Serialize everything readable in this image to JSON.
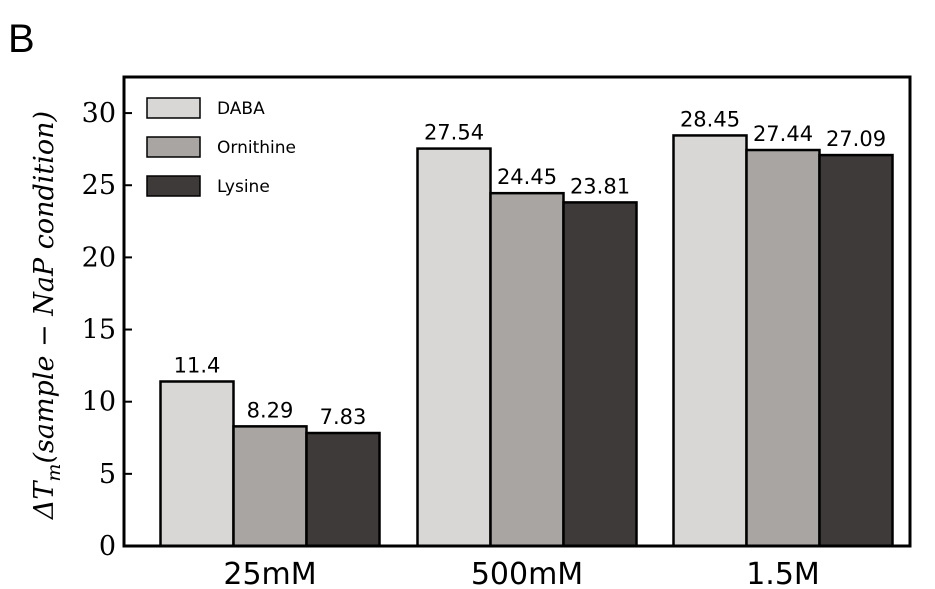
{
  "panel_label": "B",
  "chart_data": {
    "type": "bar",
    "ylabel": "ΔT_m(sample − NaP condition)",
    "ylabel_parts": {
      "delta_t": "ΔT",
      "subscript": "m",
      "rest": "(sample − NaP condition)"
    },
    "xlabel": "",
    "categories": [
      "25mM",
      "500mM",
      "1.5M"
    ],
    "series": [
      {
        "name": "DABA",
        "values": [
          11.4,
          27.54,
          28.45
        ],
        "color": "#d9d7d6"
      },
      {
        "name": "Ornithine",
        "values": [
          8.29,
          24.45,
          27.44
        ],
        "color": "#a9a5a3"
      },
      {
        "name": "Lysine",
        "values": [
          7.83,
          23.81,
          27.09
        ],
        "color": "#3e3a39"
      }
    ],
    "data_labels": [
      [
        "11.4",
        "27.54",
        "28.45"
      ],
      [
        "8.29",
        "24.45",
        "27.44"
      ],
      [
        "7.83",
        "23.81",
        "27.09"
      ]
    ],
    "ylim": [
      0,
      32.5
    ],
    "yticks": [
      0,
      5,
      10,
      15,
      20,
      25,
      30
    ],
    "grid": false,
    "legend_position": "top-left"
  }
}
